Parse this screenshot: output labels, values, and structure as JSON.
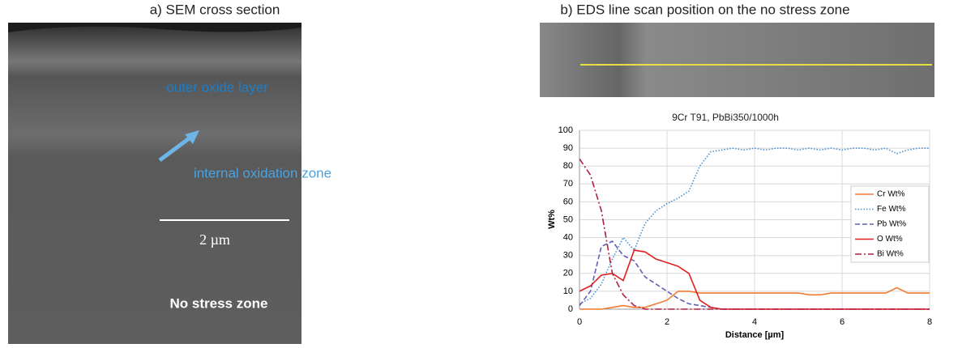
{
  "panel_a": {
    "title": "a) SEM cross section",
    "outer_label": "outer oxide layer",
    "inner_label": "internal oxidation zone",
    "scale_label": "2 µm",
    "zone_label": "No stress zone"
  },
  "panel_b": {
    "title": "b) EDS line scan position on the no stress zone"
  },
  "chart_data": {
    "type": "line",
    "title": "9Cr T91, PbBi350/1000h",
    "x_label": "Distance [µm]",
    "y_label": "Wt%",
    "x": [
      0,
      0.25,
      0.5,
      0.75,
      1,
      1.25,
      1.5,
      1.75,
      2,
      2.25,
      2.5,
      2.75,
      3,
      3.25,
      3.5,
      3.75,
      4,
      4.25,
      4.5,
      4.75,
      5,
      5.25,
      5.5,
      5.75,
      6,
      6.25,
      6.5,
      6.75,
      7,
      7.25,
      7.5,
      7.75,
      8
    ],
    "series": [
      {
        "name": "Cr Wt%",
        "color": "#f47a30",
        "dash": "solid",
        "values": [
          0,
          0,
          0,
          1,
          2,
          1,
          1,
          3,
          5,
          10,
          10,
          9,
          9,
          9,
          9,
          9,
          9,
          9,
          9,
          9,
          9,
          8,
          8,
          9,
          9,
          9,
          9,
          9,
          9,
          12,
          9,
          9,
          9
        ]
      },
      {
        "name": "Fe Wt%",
        "color": "#4a90d0",
        "dash": "dotted",
        "values": [
          3,
          6,
          14,
          28,
          40,
          33,
          48,
          55,
          59,
          62,
          66,
          80,
          88,
          89,
          90,
          89,
          90,
          89,
          90,
          90,
          89,
          90,
          89,
          90,
          89,
          90,
          90,
          89,
          90,
          87,
          89,
          90,
          90
        ]
      },
      {
        "name": "Pb Wt%",
        "color": "#6060b0",
        "dash": "dashed",
        "values": [
          2,
          10,
          35,
          38,
          30,
          27,
          18,
          14,
          10,
          6,
          3,
          2,
          1,
          0,
          0,
          0,
          0,
          0,
          0,
          0,
          0,
          0,
          0,
          0,
          0,
          0,
          0,
          0,
          0,
          0,
          0,
          0,
          0
        ]
      },
      {
        "name": "O Wt%",
        "color": "#e02020",
        "dash": "solid",
        "values": [
          10,
          13,
          19,
          20,
          16,
          33,
          32,
          28,
          26,
          24,
          20,
          5,
          1,
          0,
          0,
          0,
          0,
          0,
          0,
          0,
          0,
          0,
          0,
          0,
          0,
          0,
          0,
          0,
          0,
          0,
          0,
          0,
          0
        ]
      },
      {
        "name": "Bi Wt%",
        "color": "#b02040",
        "dash": "dashdot",
        "values": [
          84,
          75,
          55,
          20,
          8,
          2,
          0,
          0,
          0,
          0,
          0,
          0,
          0,
          0,
          0,
          0,
          0,
          0,
          0,
          0,
          0,
          0,
          0,
          0,
          0,
          0,
          0,
          0,
          0,
          0,
          0,
          0,
          0
        ]
      }
    ],
    "xlim": [
      0,
      8
    ],
    "xticks": [
      0,
      2,
      4,
      6,
      8
    ],
    "ylim": [
      0,
      100
    ],
    "yticks": [
      0,
      10,
      20,
      30,
      40,
      50,
      60,
      70,
      80,
      90,
      100
    ],
    "grid": true,
    "legend": "right"
  }
}
